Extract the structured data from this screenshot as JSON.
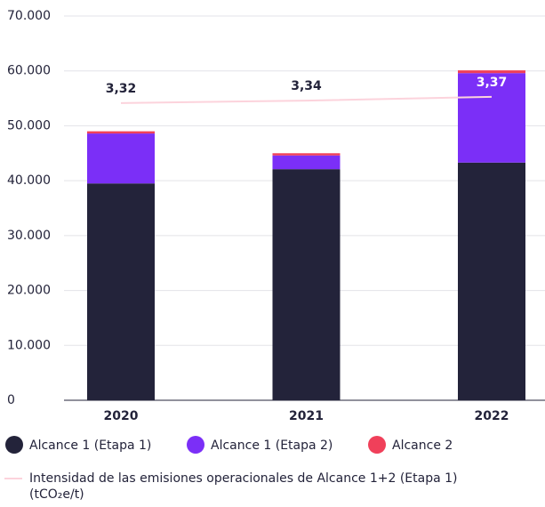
{
  "chart_data": {
    "type": "bar",
    "stacked": true,
    "categories": [
      "2020",
      "2021",
      "2022"
    ],
    "ylim": [
      0,
      70000
    ],
    "yticks": [
      0,
      {
        "value": 10000,
        "label": "10.000"
      },
      {
        "value": 20000,
        "label": "20.000"
      },
      {
        "value": 30000,
        "label": "30.000"
      },
      {
        "value": 40000,
        "label": "40.000"
      },
      {
        "value": 50000,
        "label": "50.000"
      },
      {
        "value": 60000,
        "label": "60.000"
      },
      {
        "value": 70000,
        "label": "70.000"
      }
    ],
    "grid": true,
    "y2lim": [
      0.93,
      4.02
    ],
    "series": [
      {
        "name": "Alcance 1 (Etapa 1)",
        "color": "#23233a",
        "values": [
          39500,
          42100,
          43300
        ]
      },
      {
        "name": "Alcance 1 (Etapa 2)",
        "color": "#7b2ff7",
        "values": [
          9100,
          2500,
          16300
        ]
      },
      {
        "name": "Alcance 2",
        "color": "#f0405a",
        "values": [
          400,
          400,
          500
        ]
      },
      {
        "name": "Intensidad de las emisiones operacionales de Alcance 1+2 (Etapa 1) (tCO₂e/t)",
        "type": "line",
        "axis": "y2",
        "color": "#fcd3dc",
        "values": [
          3.32,
          3.34,
          3.37
        ],
        "value_labels": [
          "3,32",
          "3,34",
          "3,37"
        ]
      }
    ],
    "legend": "bottom"
  }
}
